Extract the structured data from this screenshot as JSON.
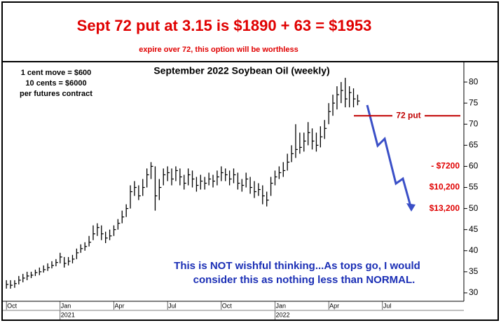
{
  "chart_data": {
    "type": "hlc",
    "headline": "Sept 72 put at 3.15 is $1890 + 63 = $1953",
    "subheadline": "expire over 72, this option will be worthless",
    "title": "September 2022 Soybean Oil (weekly)",
    "notes": [
      "1 cent move = $600",
      "10 cents = $6000",
      "per futures contract"
    ],
    "comment": [
      "This is NOT wishful thinking...As tops go, I would",
      "consider this as nothing less than NORMAL."
    ],
    "annotations": [
      {
        "text": "72 put",
        "y": 72
      },
      {
        "text": "- $7200",
        "y": 60
      },
      {
        "text": "$10,200",
        "y": 55
      },
      {
        "text": "$13,200",
        "y": 50
      }
    ],
    "color": "#000000",
    "x": [
      0,
      1,
      2,
      3,
      4,
      5,
      6,
      7,
      8,
      9,
      10,
      11,
      12,
      13,
      14,
      15,
      16,
      17,
      18,
      19,
      20,
      21,
      22,
      23,
      24,
      25,
      26,
      27,
      28,
      29,
      30,
      31,
      32,
      33,
      34,
      35,
      36,
      37,
      38,
      39,
      40,
      41,
      42,
      43,
      44,
      45,
      46,
      47,
      48,
      49,
      50,
      51,
      52,
      53,
      54,
      55,
      56,
      57,
      58,
      59,
      60,
      61,
      62,
      63,
      64,
      65,
      66,
      67,
      68,
      69,
      70,
      71,
      72,
      73,
      74,
      75,
      76,
      77,
      78,
      79,
      80,
      81,
      82,
      83,
      84,
      85
    ],
    "high": [
      33.0,
      33.0,
      33.0,
      34.0,
      34.5,
      35.0,
      35.0,
      35.5,
      36.0,
      36.5,
      37.0,
      37.5,
      38.0,
      39.5,
      38.5,
      38.5,
      39.0,
      40.5,
      41.5,
      42.0,
      43.5,
      46.0,
      46.5,
      46.0,
      44.5,
      45.0,
      46.0,
      47.5,
      49.5,
      51.0,
      55.5,
      56.5,
      55.5,
      57.0,
      59.5,
      61.0,
      60.0,
      57.0,
      59.5,
      60.0,
      59.5,
      60.0,
      59.5,
      58.0,
      59.5,
      59.0,
      57.5,
      58.0,
      57.5,
      58.5,
      58.0,
      59.0,
      60.0,
      59.5,
      59.0,
      59.5,
      58.5,
      57.0,
      58.5,
      57.5,
      56.5,
      56.0,
      55.5,
      54.0,
      57.5,
      59.0,
      60.0,
      61.0,
      63.0,
      65.0,
      70.0,
      68.0,
      68.0,
      70.5,
      69.0,
      68.0,
      69.5,
      71.0,
      75.0,
      77.0,
      79.0,
      80.0,
      81.0,
      79.0,
      78.5,
      77.0
    ],
    "low": [
      31.0,
      31.0,
      31.2,
      32.0,
      32.5,
      33.0,
      33.5,
      34.0,
      34.2,
      34.8,
      35.2,
      35.8,
      36.3,
      37.0,
      36.0,
      36.5,
      37.0,
      38.0,
      39.5,
      40.0,
      41.0,
      42.5,
      43.5,
      42.5,
      41.8,
      42.5,
      43.5,
      45.0,
      46.5,
      48.0,
      50.0,
      53.0,
      52.0,
      53.0,
      55.0,
      57.0,
      49.5,
      52.0,
      55.5,
      56.5,
      55.5,
      56.5,
      55.5,
      54.5,
      55.5,
      55.0,
      54.0,
      54.5,
      54.5,
      55.5,
      55.0,
      55.5,
      56.5,
      56.5,
      55.5,
      56.0,
      54.5,
      54.0,
      55.0,
      53.5,
      52.5,
      53.0,
      51.0,
      50.5,
      53.0,
      55.5,
      57.0,
      57.5,
      59.0,
      61.0,
      62.0,
      63.0,
      63.5,
      65.0,
      64.0,
      63.5,
      64.5,
      66.5,
      70.0,
      72.0,
      73.5,
      75.0,
      74.0,
      74.0,
      74.0,
      74.5
    ],
    "close": [
      32.0,
      31.8,
      32.2,
      33.0,
      33.5,
      34.0,
      34.2,
      34.8,
      35.0,
      35.5,
      36.0,
      36.5,
      37.2,
      38.5,
      37.0,
      37.5,
      38.0,
      39.5,
      40.5,
      41.0,
      42.0,
      44.0,
      45.5,
      44.0,
      43.0,
      43.5,
      45.0,
      46.5,
      48.0,
      50.0,
      54.0,
      55.0,
      53.0,
      55.0,
      58.0,
      60.0,
      53.0,
      55.0,
      58.0,
      58.5,
      57.0,
      59.0,
      57.5,
      56.0,
      58.0,
      57.0,
      55.5,
      56.5,
      56.0,
      57.0,
      56.5,
      57.5,
      58.5,
      58.0,
      57.0,
      58.0,
      56.0,
      55.5,
      57.0,
      55.0,
      54.0,
      54.5,
      53.0,
      52.0,
      56.0,
      57.5,
      58.5,
      59.0,
      61.0,
      63.0,
      64.0,
      64.5,
      66.0,
      68.0,
      66.0,
      65.0,
      67.0,
      69.0,
      73.0,
      75.0,
      77.0,
      78.0,
      76.0,
      77.5,
      76.0,
      75.5
    ],
    "xlim": [
      -0.7,
      110.7
    ],
    "xticks": [
      {
        "value": 0,
        "label": "Oct"
      },
      {
        "value": 13,
        "label": "Jan"
      },
      {
        "value": 26,
        "label": "Apr"
      },
      {
        "value": 39,
        "label": "Jul"
      },
      {
        "value": 52,
        "label": "Oct"
      },
      {
        "value": 65,
        "label": "Jan"
      },
      {
        "value": 78,
        "label": "Apr"
      },
      {
        "value": 91,
        "label": "Jul"
      }
    ],
    "year_labels": [
      {
        "value": 13,
        "label": "2021"
      },
      {
        "value": 65,
        "label": "2022"
      }
    ],
    "ylim": [
      28,
      84.5
    ],
    "yticks": [
      30,
      35,
      40,
      45,
      50,
      55,
      60,
      65,
      70,
      75,
      80
    ]
  }
}
